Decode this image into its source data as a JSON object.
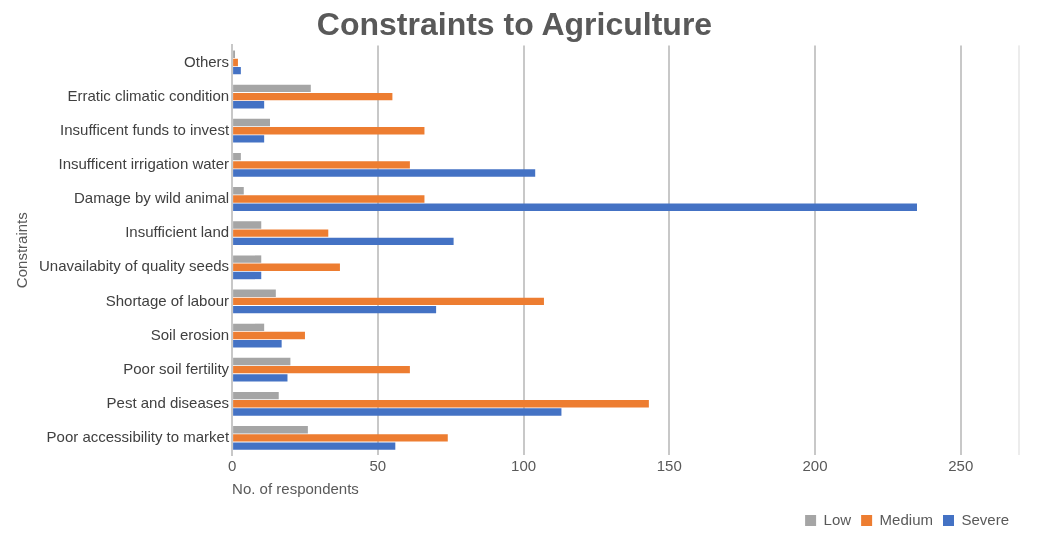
{
  "chart_data": {
    "type": "bar",
    "orientation": "horizontal",
    "title": "Constraints to Agriculture",
    "xlabel": "No. of respondents",
    "ylabel": "Constraints",
    "categories": [
      "Others",
      "Erratic climatic condition",
      "Insufficent funds to invest",
      "Insufficent irrigation water",
      "Damage by wild animal",
      "Insufficient land",
      "Unavailabity of quality seeds",
      "Shortage of labour",
      "Soil erosion",
      "Poor soil fertility",
      "Pest and diseases",
      "Poor accessibility to market"
    ],
    "series": [
      {
        "name": "Low",
        "color": "#a5a5a5",
        "values": [
          1,
          27,
          13,
          3,
          4,
          10,
          10,
          15,
          11,
          20,
          16,
          26
        ]
      },
      {
        "name": "Medium",
        "color": "#ed7d31",
        "values": [
          2,
          55,
          66,
          61,
          66,
          33,
          37,
          107,
          25,
          61,
          143,
          74
        ]
      },
      {
        "name": "Severe",
        "color": "#4472c4",
        "values": [
          3,
          11,
          11,
          104,
          235,
          76,
          10,
          70,
          17,
          19,
          113,
          56
        ]
      }
    ],
    "xlim": [
      0,
      270
    ],
    "xticks": [
      0,
      50,
      100,
      150,
      200,
      250
    ],
    "grid": "x",
    "legend": "bottom right"
  }
}
